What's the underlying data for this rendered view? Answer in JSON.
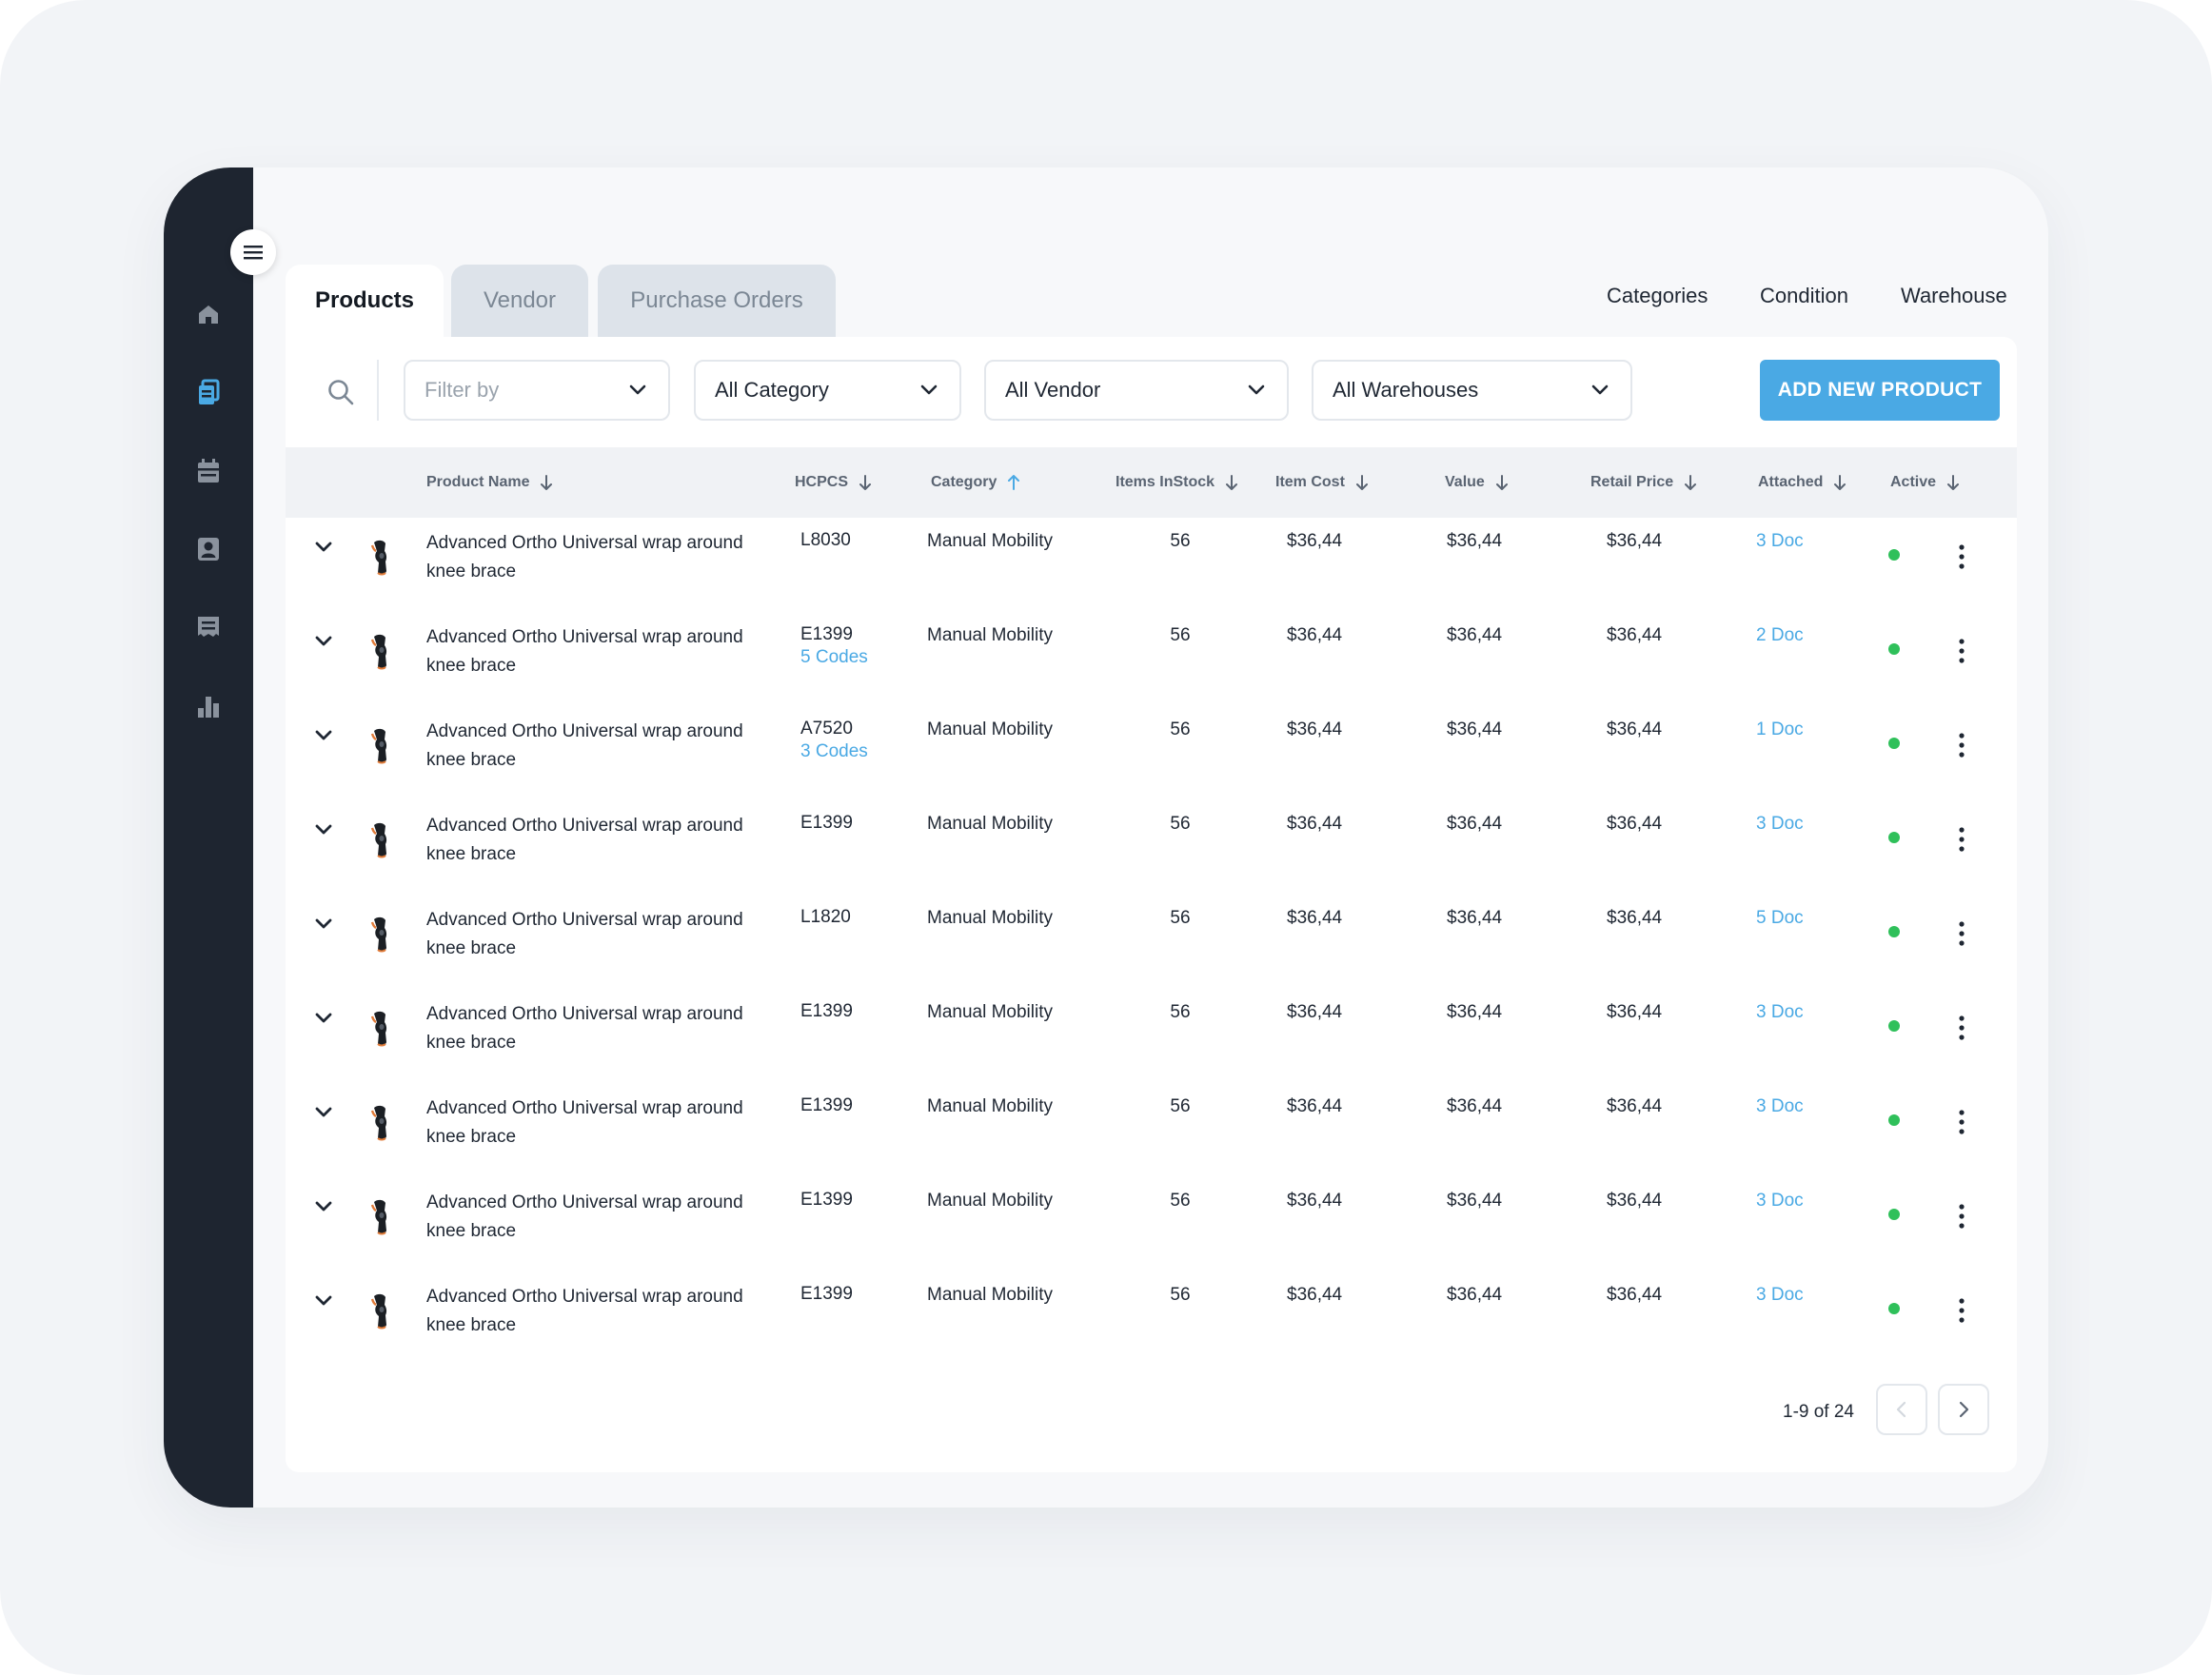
{
  "colors": {
    "sidebar": "#1e2530",
    "accent": "#4aa9e4",
    "active_dot": "#2fc05a"
  },
  "sidebar": {
    "menu_icon": "hamburger-icon",
    "items": [
      {
        "icon": "home-icon",
        "active": false
      },
      {
        "icon": "documents-icon",
        "active": true
      },
      {
        "icon": "calendar-icon",
        "active": false
      },
      {
        "icon": "contact-icon",
        "active": false
      },
      {
        "icon": "receipt-icon",
        "active": false
      },
      {
        "icon": "bar-chart-icon",
        "active": false
      }
    ]
  },
  "tabs": [
    {
      "label": "Products",
      "active": true
    },
    {
      "label": "Vendor",
      "active": false
    },
    {
      "label": "Purchase Orders",
      "active": false
    }
  ],
  "top_links": [
    "Categories",
    "Condition",
    "Warehouse"
  ],
  "filters": {
    "filter_by": "Filter by",
    "category": "All Category",
    "vendor": "All Vendor",
    "warehouses": "All Warehouses"
  },
  "add_button": "ADD NEW PRODUCT",
  "columns": [
    {
      "label": "Product Name",
      "sort": "down"
    },
    {
      "label": "HCPCS",
      "sort": "down"
    },
    {
      "label": "Category",
      "sort": "up"
    },
    {
      "label": "Items InStock",
      "sort": "down"
    },
    {
      "label": "Item Cost",
      "sort": "down"
    },
    {
      "label": "Value",
      "sort": "down"
    },
    {
      "label": "Retail Price",
      "sort": "down"
    },
    {
      "label": "Attached",
      "sort": "down"
    },
    {
      "label": "Active",
      "sort": "down"
    }
  ],
  "rows": [
    {
      "name": "Advanced Ortho Universal wrap around knee brace",
      "code": "L8030",
      "codes": "",
      "category": "Manual Mobility",
      "stock": "56",
      "cost": "$36,44",
      "value": "$36,44",
      "retail": "$36,44",
      "attached": "3 Doc"
    },
    {
      "name": "Advanced Ortho Universal wrap around knee brace",
      "code": "E1399",
      "codes": "5 Codes",
      "category": "Manual Mobility",
      "stock": "56",
      "cost": "$36,44",
      "value": "$36,44",
      "retail": "$36,44",
      "attached": "2 Doc"
    },
    {
      "name": "Advanced Ortho Universal wrap around knee brace",
      "code": "A7520",
      "codes": "3 Codes",
      "category": "Manual Mobility",
      "stock": "56",
      "cost": "$36,44",
      "value": "$36,44",
      "retail": "$36,44",
      "attached": "1 Doc"
    },
    {
      "name": "Advanced Ortho Universal wrap around knee brace",
      "code": "E1399",
      "codes": "",
      "category": "Manual Mobility",
      "stock": "56",
      "cost": "$36,44",
      "value": "$36,44",
      "retail": "$36,44",
      "attached": "3 Doc"
    },
    {
      "name": "Advanced Ortho Universal wrap around knee brace",
      "code": "L1820",
      "codes": "",
      "category": "Manual Mobility",
      "stock": "56",
      "cost": "$36,44",
      "value": "$36,44",
      "retail": "$36,44",
      "attached": "5 Doc"
    },
    {
      "name": "Advanced Ortho Universal wrap around knee brace",
      "code": "E1399",
      "codes": "",
      "category": "Manual Mobility",
      "stock": "56",
      "cost": "$36,44",
      "value": "$36,44",
      "retail": "$36,44",
      "attached": "3 Doc"
    },
    {
      "name": "Advanced Ortho Universal wrap around knee brace",
      "code": "E1399",
      "codes": "",
      "category": "Manual Mobility",
      "stock": "56",
      "cost": "$36,44",
      "value": "$36,44",
      "retail": "$36,44",
      "attached": "3 Doc"
    },
    {
      "name": "Advanced Ortho Universal wrap around knee brace",
      "code": "E1399",
      "codes": "",
      "category": "Manual Mobility",
      "stock": "56",
      "cost": "$36,44",
      "value": "$36,44",
      "retail": "$36,44",
      "attached": "3 Doc"
    },
    {
      "name": "Advanced Ortho Universal wrap around knee brace",
      "code": "E1399",
      "codes": "",
      "category": "Manual Mobility",
      "stock": "56",
      "cost": "$36,44",
      "value": "$36,44",
      "retail": "$36,44",
      "attached": "3 Doc"
    }
  ],
  "pagination": {
    "text": "1-9 of 24",
    "prev_icon": "chevron-left-icon",
    "next_icon": "chevron-right-icon"
  }
}
